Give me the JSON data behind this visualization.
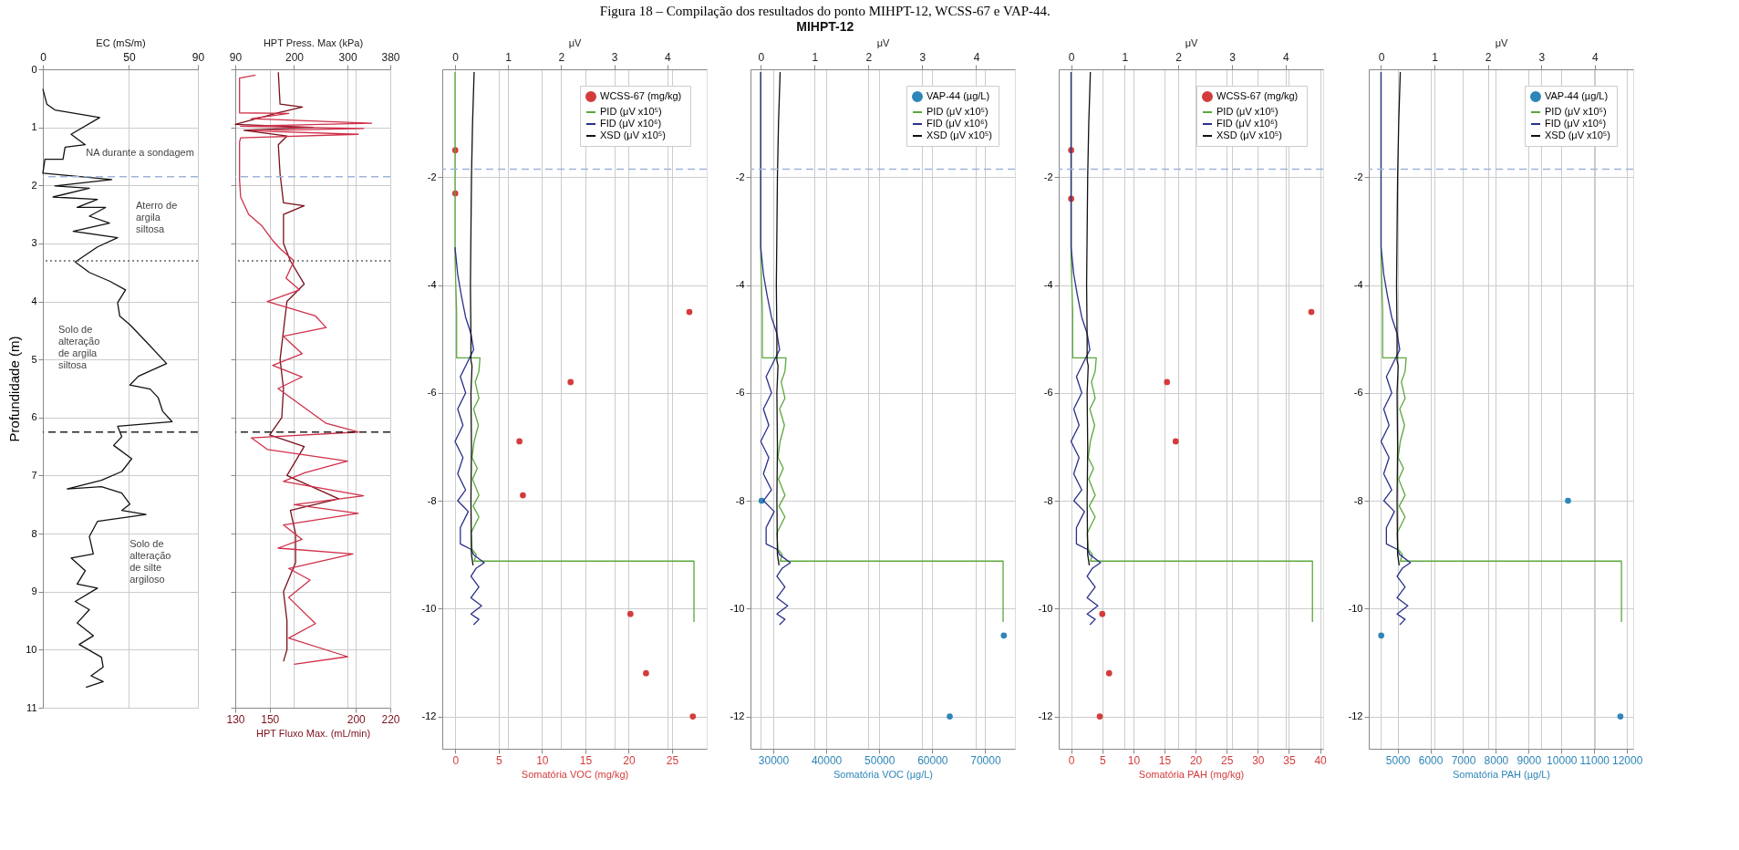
{
  "chart_data": [
    {
      "type": "other",
      "title": "Figura 18 – Compilação dos resultados do ponto MIHPT-12, WCSS-67 e VAP-44.",
      "subtitle": "MIHPT-12"
    },
    {
      "type": "line",
      "xlabel": "EC (mS/m)",
      "ylabel": "Profundidade (m)",
      "xlim": [
        0,
        90
      ],
      "xticks": [
        0,
        50,
        90
      ],
      "ylim": [
        11,
        0
      ],
      "yticks": [
        0,
        1,
        2,
        3,
        4,
        5,
        6,
        7,
        8,
        9,
        10,
        11
      ],
      "grid": true,
      "series": [
        {
          "color": "#111111",
          "x": [
            0,
            2.3,
            7,
            33,
            16.4,
            24.6,
            12.9,
            11.7,
            1.2,
            0,
            40,
            7,
            27,
            5.9,
            31.7,
            19.9,
            36.4,
            27,
            38.7,
            17.6,
            43.4,
            31.7,
            18.8,
            27,
            38.7,
            48,
            43.4,
            44.6,
            50.5,
            59.9,
            71.8,
            55.4,
            50.5,
            62.3,
            67,
            69.5,
            75,
            43.4,
            45.8,
            41.1,
            51.6,
            45.8,
            34,
            14.1,
            34,
            45.8,
            50.5,
            45.8,
            59.9,
            31.7,
            27,
            29.3,
            16.4,
            24.6,
            19.9,
            31.7,
            18.8,
            27,
            19.9,
            29.3,
            21.1,
            34,
            35,
            28,
            35,
            25
          ],
          "values": [
            0.34,
            0.6,
            0.7,
            0.83,
            1.12,
            1.3,
            1.34,
            1.55,
            1.55,
            1.79,
            1.9,
            2.01,
            2.05,
            2.2,
            2.24,
            2.38,
            2.38,
            2.53,
            2.65,
            2.79,
            2.9,
            3.06,
            3.32,
            3.5,
            3.65,
            3.8,
            4.02,
            4.25,
            4.4,
            4.69,
            5.07,
            5.29,
            5.44,
            5.51,
            5.66,
            5.89,
            6.07,
            6.15,
            6.33,
            6.48,
            6.71,
            6.93,
            7.08,
            7.23,
            7.19,
            7.3,
            7.49,
            7.6,
            7.67,
            7.79,
            8.05,
            8.35,
            8.42,
            8.64,
            8.87,
            8.94,
            9.17,
            9.31,
            9.54,
            9.76,
            9.91,
            10.13,
            10.3,
            10.45,
            10.55,
            10.65
          ]
        }
      ],
      "ref_lines": [
        {
          "axis": "y",
          "value": 1.85,
          "color": "#9fb3d9",
          "line_style": "dashed"
        },
        {
          "axis": "y",
          "value": 3.3,
          "color": "#666666",
          "line_style": "dotted"
        },
        {
          "axis": "y",
          "value": 6.25,
          "color": "#222222",
          "line_style": "dashed"
        }
      ],
      "annotations": [
        {
          "text": "NA durante a sondagem",
          "x": 25,
          "y": 1.35
        },
        "Aterro de\nargila\nsiltosa",
        "Solo de\nalteração\nde argila\nsiltosa",
        "Solo de\nalteração\nde silte\nargiloso"
      ]
    },
    {
      "type": "line",
      "xlabel": "HPT Fluxo Max. (mL/min)",
      "x2label": "HPT Press. Max (kPa)",
      "xlim": [
        130,
        220
      ],
      "xticks": [
        130,
        150,
        200,
        220
      ],
      "x2lim": [
        90,
        380
      ],
      "x2ticks": [
        90,
        200,
        300,
        380
      ],
      "ylim": [
        11,
        0
      ],
      "yticks": [
        0,
        1,
        2,
        3,
        4,
        5,
        6,
        7,
        8,
        9,
        10,
        11
      ],
      "grid": true,
      "tick_labels": "x",
      "series": [
        {
          "color": "#d0304a",
          "axis": "x2",
          "x": [
            128,
            98,
            98,
            190,
            120,
            345,
            100,
            330,
            120,
            320,
            100,
            98,
            98,
            100,
            115,
            140,
            160,
            175,
            200,
            185,
            210,
            150,
            240,
            260,
            180,
            215,
            160,
            215,
            170,
            200,
            260,
            320,
            120,
            150,
            300,
            220,
            180,
            330,
            200,
            320,
            180,
            215,
            170,
            310,
            190,
            230,
            190,
            240,
            190,
            300,
            200
          ],
          "values": [
            0.1,
            0.15,
            0.75,
            0.76,
            0.85,
            0.93,
            0.98,
            1.02,
            1.06,
            1.12,
            1.18,
            1.25,
            1.9,
            2.2,
            2.5,
            2.7,
            2.95,
            3.1,
            3.3,
            3.6,
            3.8,
            4.0,
            4.25,
            4.45,
            4.6,
            4.9,
            5.1,
            5.3,
            5.5,
            5.7,
            6.1,
            6.25,
            6.35,
            6.55,
            6.75,
            6.95,
            7.1,
            7.35,
            7.5,
            7.65,
            7.85,
            8.1,
            8.25,
            8.35,
            8.6,
            8.8,
            9.1,
            9.55,
            9.8,
            10.12,
            10.25
          ]
        },
        {
          "color": "#7a0f1a",
          "x": [
            155,
            156,
            169,
            155,
            130,
            175,
            135,
            160,
            155,
            156,
            158,
            170,
            158,
            158,
            162,
            170,
            160,
            158,
            156,
            158,
            157,
            150,
            170,
            160,
            190,
            162,
            165,
            165,
            158,
            160,
            160,
            158
          ],
          "values": [
            0.05,
            0.6,
            0.65,
            0.75,
            0.95,
            1.0,
            1.05,
            1.15,
            1.3,
            1.8,
            2.3,
            2.35,
            2.5,
            3.0,
            3.3,
            3.7,
            4.0,
            4.5,
            5.0,
            5.5,
            6.0,
            6.3,
            6.5,
            7.0,
            7.4,
            7.6,
            8.0,
            8.5,
            9.0,
            9.5,
            10.0,
            10.2
          ]
        }
      ],
      "ref_lines": [
        {
          "axis": "y",
          "value": 1.85,
          "color": "#9fb3d9",
          "line_style": "dashed"
        },
        {
          "axis": "y",
          "value": 3.3,
          "color": "#666666",
          "line_style": "dotted"
        },
        {
          "axis": "y",
          "value": 6.25,
          "color": "#222222",
          "line_style": "dashed"
        }
      ]
    },
    {
      "type": "scatter",
      "xlabel": "Somatória VOC (mg/kg)",
      "x2label": "μV",
      "xlim": [
        -1.5,
        29
      ],
      "xticks": [
        0,
        5,
        10,
        15,
        20,
        25
      ],
      "x2lim": [
        -0.24,
        4.74
      ],
      "x2ticks": [
        0,
        1,
        2,
        3,
        4
      ],
      "ylim": [
        -12.6,
        0
      ],
      "yticks": [
        -2,
        -4,
        -6,
        -8,
        -10,
        -12
      ],
      "grid": true,
      "legend": "top right",
      "series": [
        {
          "name": "WCSS-67  (mg/kg)",
          "marker": "circle",
          "color": "#d43c3c",
          "x": [
            0,
            0,
            27,
            13.3,
            7.4,
            7.8,
            20.2,
            22,
            27.4
          ],
          "values": [
            -1.5,
            -2.3,
            -4.5,
            -5.8,
            -6.9,
            -7.9,
            -10.1,
            -11.2,
            -12
          ]
        },
        {
          "name": "PID (μV x10⁵)",
          "type": "line",
          "axis": "x2",
          "color": "#5aa83c",
          "x": [
            0,
            0,
            0.03,
            0.03,
            0.47,
            0.45,
            0.38,
            0.45,
            0.35,
            0.44,
            0.36,
            0.32,
            0.42,
            0.33,
            0.45,
            0.34,
            0.45,
            0.3,
            0.32,
            0.4,
            0.36,
            4.5,
            4.5
          ],
          "values": [
            -0.05,
            -3.5,
            -4.5,
            -5.35,
            -5.35,
            -5.6,
            -5.8,
            -6.1,
            -6.3,
            -6.6,
            -6.9,
            -7.2,
            -7.4,
            -7.6,
            -7.9,
            -8.1,
            -8.3,
            -8.6,
            -8.9,
            -9.0,
            -9.12,
            -9.12,
            -10.25
          ]
        },
        {
          "name": "FID (μV x10⁶)",
          "type": "line",
          "axis": "x2",
          "color": "#2b2f8a",
          "x": [
            0,
            0.05,
            0.12,
            0.2,
            0.3,
            0.35,
            0.2,
            0.1,
            0.2,
            0.05,
            0.15,
            0,
            0.15,
            0.05,
            0.2,
            0.05,
            0.25,
            0.1,
            0.1,
            0.3,
            0.35,
            0.55,
            0.4,
            0.3,
            0.45,
            0.3,
            0.5,
            0.3,
            0.45,
            0.35
          ],
          "values": [
            -3.3,
            -3.8,
            -4.2,
            -4.6,
            -4.9,
            -5.2,
            -5.5,
            -5.7,
            -6.0,
            -6.3,
            -6.6,
            -6.9,
            -7.2,
            -7.5,
            -7.8,
            -8.0,
            -8.2,
            -8.5,
            -8.8,
            -8.9,
            -9.0,
            -9.15,
            -9.25,
            -9.4,
            -9.6,
            -9.8,
            -9.95,
            -10.1,
            -10.2,
            -10.3
          ]
        },
        {
          "name": "XSD (μV x10⁵)",
          "type": "line",
          "axis": "x2",
          "color": "#111111",
          "x": [
            0.36,
            0.33,
            0.31,
            0.3,
            0.29,
            0.3,
            0.3,
            0.32,
            0.3,
            0.31,
            0.3,
            0.31,
            0.34
          ],
          "values": [
            -0.05,
            -1,
            -2,
            -3,
            -4,
            -5,
            -5.4,
            -5.5,
            -6,
            -7,
            -8,
            -9,
            -9.2
          ]
        }
      ],
      "ref_lines": [
        {
          "axis": "y",
          "value": -1.85,
          "color": "#9fb3d9",
          "line_style": "dashed"
        }
      ]
    },
    {
      "type": "scatter",
      "xlabel": "Somatória VOC (µg/L)",
      "x2label": "μV",
      "xlim": [
        25700,
        75600
      ],
      "xticks": [
        30000,
        40000,
        50000,
        60000,
        70000
      ],
      "x2lim": [
        -0.19,
        4.72
      ],
      "x2ticks": [
        0,
        1,
        2,
        3,
        4
      ],
      "ylim": [
        -12.6,
        0
      ],
      "yticks": [
        -2,
        -4,
        -6,
        -8,
        -10,
        -12
      ],
      "grid": true,
      "legend": "top right",
      "series": [
        {
          "name": "VAP-44 (µg/L)",
          "marker": "circle",
          "color": "#2e86b8",
          "x": [
            27800,
            73500,
            63300
          ],
          "values": [
            -8,
            -10.5,
            -12
          ]
        },
        {
          "name": "PID (μV x10⁵)",
          "type": "line",
          "axis": "x2",
          "color": "#5aa83c",
          "x": [
            0,
            0,
            0.03,
            0.03,
            0.47,
            0.45,
            0.38,
            0.45,
            0.35,
            0.44,
            0.36,
            0.32,
            0.42,
            0.33,
            0.45,
            0.34,
            0.45,
            0.3,
            0.32,
            0.4,
            0.36,
            4.5,
            4.5
          ],
          "values": [
            -0.05,
            -3.5,
            -4.5,
            -5.35,
            -5.35,
            -5.6,
            -5.8,
            -6.1,
            -6.3,
            -6.6,
            -6.9,
            -7.2,
            -7.4,
            -7.6,
            -7.9,
            -8.1,
            -8.3,
            -8.6,
            -8.9,
            -9.0,
            -9.12,
            -9.12,
            -10.25
          ]
        },
        {
          "name": "FID (μV x10⁶)",
          "type": "line",
          "axis": "x2",
          "color": "#2b2f8a",
          "x": [
            0,
            0,
            0.05,
            0.12,
            0.2,
            0.3,
            0.35,
            0.2,
            0.1,
            0.2,
            0.05,
            0.15,
            0,
            0.15,
            0.05,
            0.2,
            0.05,
            0.25,
            0.1,
            0.1,
            0.3,
            0.35,
            0.55,
            0.4,
            0.3,
            0.45,
            0.3,
            0.5,
            0.3,
            0.45,
            0.35
          ],
          "values": [
            -0.05,
            -3.3,
            -3.8,
            -4.2,
            -4.6,
            -4.9,
            -5.2,
            -5.5,
            -5.7,
            -6.0,
            -6.3,
            -6.6,
            -6.9,
            -7.2,
            -7.5,
            -7.8,
            -8.0,
            -8.2,
            -8.5,
            -8.8,
            -8.9,
            -9.0,
            -9.15,
            -9.25,
            -9.4,
            -9.6,
            -9.8,
            -9.95,
            -10.1,
            -10.2,
            -10.3
          ]
        },
        {
          "name": "XSD (μV x10⁵)",
          "type": "line",
          "axis": "x2",
          "color": "#111111",
          "x": [
            0.36,
            0.33,
            0.31,
            0.3,
            0.29,
            0.3,
            0.3,
            0.32,
            0.3,
            0.31,
            0.3,
            0.31,
            0.34
          ],
          "values": [
            -0.05,
            -1,
            -2,
            -3,
            -4,
            -5,
            -5.4,
            -5.5,
            -6,
            -7,
            -8,
            -9,
            -9.2
          ]
        }
      ],
      "ref_lines": [
        {
          "axis": "y",
          "value": -1.85,
          "color": "#9fb3d9",
          "line_style": "dashed"
        }
      ]
    },
    {
      "type": "scatter",
      "xlabel": "Somatória PAH  (mg/kg)",
      "x2label": "μV",
      "xlim": [
        -2,
        40.5
      ],
      "xticks": [
        0,
        5,
        10,
        15,
        20,
        25,
        30,
        35,
        40
      ],
      "x2lim": [
        -0.23,
        4.7
      ],
      "x2ticks": [
        0,
        1,
        2,
        3,
        4
      ],
      "ylim": [
        -12.6,
        0
      ],
      "yticks": [
        -2,
        -4,
        -6,
        -8,
        -10,
        -12
      ],
      "grid": true,
      "legend": "top right",
      "series": [
        {
          "name": "WCSS-67  (mg/kg)",
          "marker": "circle",
          "color": "#d43c3c",
          "x": [
            0,
            0,
            38.6,
            15.4,
            16.8,
            5,
            6.1,
            4.6
          ],
          "values": [
            -1.5,
            -2.4,
            -4.5,
            -5.8,
            -6.9,
            -10.1,
            -11.2,
            -12
          ]
        },
        {
          "name": "PID (μV x10⁵)",
          "type": "line",
          "axis": "x2",
          "color": "#5aa83c",
          "x": [
            0,
            0,
            0.03,
            0.03,
            0.47,
            0.45,
            0.38,
            0.45,
            0.35,
            0.44,
            0.36,
            0.32,
            0.42,
            0.33,
            0.45,
            0.34,
            0.45,
            0.3,
            0.32,
            0.4,
            0.36,
            4.5,
            4.5
          ],
          "values": [
            -0.05,
            -3.5,
            -4.5,
            -5.35,
            -5.35,
            -5.6,
            -5.8,
            -6.1,
            -6.3,
            -6.6,
            -6.9,
            -7.2,
            -7.4,
            -7.6,
            -7.9,
            -8.1,
            -8.3,
            -8.6,
            -8.9,
            -9.0,
            -9.12,
            -9.12,
            -10.25
          ]
        },
        {
          "name": "FID (μV x10⁶)",
          "type": "line",
          "axis": "x2",
          "color": "#2b2f8a",
          "x": [
            0,
            0,
            0.05,
            0.12,
            0.2,
            0.3,
            0.35,
            0.2,
            0.1,
            0.2,
            0.05,
            0.15,
            0,
            0.15,
            0.05,
            0.2,
            0.05,
            0.25,
            0.1,
            0.1,
            0.3,
            0.35,
            0.55,
            0.4,
            0.3,
            0.45,
            0.3,
            0.5,
            0.3,
            0.45,
            0.35
          ],
          "values": [
            -0.05,
            -3.3,
            -3.8,
            -4.2,
            -4.6,
            -4.9,
            -5.2,
            -5.5,
            -5.7,
            -6.0,
            -6.3,
            -6.6,
            -6.9,
            -7.2,
            -7.5,
            -7.8,
            -8.0,
            -8.2,
            -8.5,
            -8.8,
            -8.9,
            -9.0,
            -9.15,
            -9.25,
            -9.4,
            -9.6,
            -9.8,
            -9.95,
            -10.1,
            -10.2,
            -10.3
          ]
        },
        {
          "name": "XSD (μV x10⁵)",
          "type": "line",
          "axis": "x2",
          "color": "#111111",
          "x": [
            0.36,
            0.33,
            0.31,
            0.3,
            0.29,
            0.3,
            0.3,
            0.32,
            0.3,
            0.31,
            0.3,
            0.31,
            0.34
          ],
          "values": [
            -0.05,
            -1,
            -2,
            -3,
            -4,
            -5,
            -5.4,
            -5.5,
            -6,
            -7,
            -8,
            -9,
            -9.2
          ]
        }
      ],
      "ref_lines": [
        {
          "axis": "y",
          "value": -1.85,
          "color": "#9fb3d9",
          "line_style": "dashed"
        }
      ]
    },
    {
      "type": "scatter",
      "xlabel": "Somatória PAH (µg/L)",
      "x2label": "μV",
      "xlim": [
        4120,
        12190
      ],
      "xticks": [
        5000,
        6000,
        7000,
        8000,
        9000,
        10000,
        11000,
        12000
      ],
      "x2lim": [
        -0.23,
        4.72
      ],
      "x2ticks": [
        0,
        1,
        2,
        3,
        4
      ],
      "ylim": [
        -12.6,
        0
      ],
      "yticks": [
        -2,
        -4,
        -6,
        -8,
        -10,
        -12
      ],
      "grid": true,
      "legend": "top right",
      "series": [
        {
          "name": "VAP-44 (µg/L)",
          "marker": "circle",
          "color": "#2e86b8",
          "x": [
            4500,
            10200,
            11800
          ],
          "values": [
            -10.5,
            -8,
            -12
          ]
        },
        {
          "name": "PID (μV x10⁵)",
          "type": "line",
          "axis": "x2",
          "color": "#5aa83c",
          "x": [
            0,
            0,
            0.03,
            0.03,
            0.47,
            0.45,
            0.38,
            0.45,
            0.35,
            0.44,
            0.36,
            0.32,
            0.42,
            0.33,
            0.45,
            0.34,
            0.45,
            0.3,
            0.32,
            0.4,
            0.36,
            4.5,
            4.5
          ],
          "values": [
            -0.05,
            -3.5,
            -4.5,
            -5.35,
            -5.35,
            -5.6,
            -5.8,
            -6.1,
            -6.3,
            -6.6,
            -6.9,
            -7.2,
            -7.4,
            -7.6,
            -7.9,
            -8.1,
            -8.3,
            -8.6,
            -8.9,
            -9.0,
            -9.12,
            -9.12,
            -10.25
          ]
        },
        {
          "name": "FID (μV x10⁶)",
          "type": "line",
          "axis": "x2",
          "color": "#2b2f8a",
          "x": [
            0,
            0,
            0.05,
            0.12,
            0.2,
            0.3,
            0.35,
            0.2,
            0.1,
            0.2,
            0.05,
            0.15,
            0,
            0.15,
            0.05,
            0.2,
            0.05,
            0.25,
            0.1,
            0.1,
            0.3,
            0.35,
            0.55,
            0.4,
            0.3,
            0.45,
            0.3,
            0.5,
            0.3,
            0.45,
            0.35
          ],
          "values": [
            -0.05,
            -3.3,
            -3.8,
            -4.2,
            -4.6,
            -4.9,
            -5.2,
            -5.5,
            -5.7,
            -6.0,
            -6.3,
            -6.6,
            -6.9,
            -7.2,
            -7.5,
            -7.8,
            -8.0,
            -8.2,
            -8.5,
            -8.8,
            -8.9,
            -9.0,
            -9.15,
            -9.25,
            -9.4,
            -9.6,
            -9.8,
            -9.95,
            -10.1,
            -10.2,
            -10.3
          ]
        },
        {
          "name": "XSD (μV x10⁵)",
          "type": "line",
          "axis": "x2",
          "color": "#111111",
          "x": [
            0.36,
            0.33,
            0.31,
            0.3,
            0.29,
            0.3,
            0.3,
            0.32,
            0.3,
            0.31,
            0.3,
            0.31,
            0.34
          ],
          "values": [
            -0.05,
            -1,
            -2,
            -3,
            -4,
            -5,
            -5.4,
            -5.5,
            -6,
            -7,
            -8,
            -9,
            -9.2
          ]
        }
      ],
      "ref_lines": [
        {
          "axis": "y",
          "value": -1.85,
          "color": "#9fb3d9",
          "line_style": "dashed"
        }
      ]
    }
  ]
}
